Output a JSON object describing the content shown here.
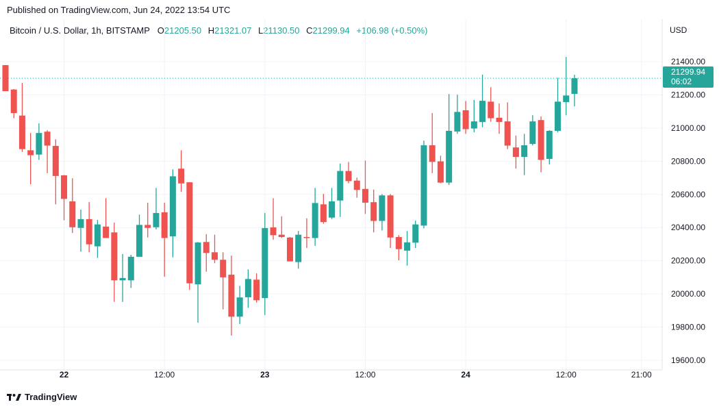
{
  "header": {
    "published": "Published on TradingView.com, Jun 24, 2022 13:54 UTC",
    "symbol": "Bitcoin / U.S. Dollar, 1h, BITSTAMP",
    "o_label": "O",
    "o_value": "21205.50",
    "h_label": "H",
    "h_value": "21321.07",
    "l_label": "L",
    "l_value": "21130.50",
    "c_label": "C",
    "c_value": "21299.94",
    "change": "+106.98 (+0.50%)"
  },
  "currency": "USD",
  "price_tag": {
    "price": "21299.94",
    "countdown": "06:02"
  },
  "footer": {
    "brand": "TradingView"
  },
  "colors": {
    "up": "#26a69a",
    "down": "#ef5350",
    "grid": "#f0f3fa",
    "last_price_line": "#26a69a"
  },
  "chart_data": {
    "type": "candlestick",
    "interval": "1h",
    "ylim": [
      19600,
      21400
    ],
    "grid": true,
    "y_ticks": [
      "19600.00",
      "19800.00",
      "20000.00",
      "20200.00",
      "20400.00",
      "20600.00",
      "20800.00",
      "21000.00",
      "21200.00",
      "21400.00"
    ],
    "x_ticks": [
      {
        "label": "22",
        "t": "22 00:00",
        "bold": true
      },
      {
        "label": "12:00",
        "t": "22 12:00",
        "bold": false
      },
      {
        "label": "23",
        "t": "23 00:00",
        "bold": true
      },
      {
        "label": "12:00",
        "t": "23 12:00",
        "bold": false
      },
      {
        "label": "24",
        "t": "24 00:00",
        "bold": true
      },
      {
        "label": "12:00",
        "t": "24 12:00",
        "bold": false
      },
      {
        "label": "21:00",
        "t": "24 21:00",
        "bold": false
      }
    ],
    "last_price": 21299.94,
    "candles_start": "21 17:00",
    "ohlc": [
      [
        21379,
        21380,
        21222,
        21222
      ],
      [
        21232,
        21235,
        21059,
        21090
      ],
      [
        21075,
        21272,
        20856,
        20873
      ],
      [
        20866,
        20970,
        20661,
        20836
      ],
      [
        20840,
        21028,
        20808,
        20970
      ],
      [
        20978,
        20987,
        20728,
        20894
      ],
      [
        20892,
        20932,
        20540,
        20711
      ],
      [
        20715,
        20717,
        20444,
        20573
      ],
      [
        20558,
        20697,
        20367,
        20402
      ],
      [
        20398,
        20508,
        20255,
        20451
      ],
      [
        20451,
        20554,
        20251,
        20299
      ],
      [
        20287,
        20446,
        20217,
        20419
      ],
      [
        20406,
        20577,
        20337,
        20337
      ],
      [
        20371,
        20430,
        19952,
        20082
      ],
      [
        20082,
        20241,
        19952,
        20096
      ],
      [
        20082,
        20236,
        20036,
        20224
      ],
      [
        20224,
        20478,
        20224,
        20416
      ],
      [
        20416,
        20550,
        20340,
        20398
      ],
      [
        20402,
        20639,
        20389,
        20488
      ],
      [
        20492,
        20550,
        20104,
        20337
      ],
      [
        20347,
        20751,
        20221,
        20709
      ],
      [
        20755,
        20866,
        20616,
        20666
      ],
      [
        20673,
        20673,
        20024,
        20064
      ],
      [
        20058,
        20313,
        19827,
        20310
      ],
      [
        20313,
        20361,
        20134,
        20247
      ],
      [
        20251,
        20357,
        20185,
        20206
      ],
      [
        20206,
        20251,
        19907,
        20100
      ],
      [
        20116,
        20231,
        19749,
        19863
      ],
      [
        19863,
        20049,
        19819,
        19979
      ],
      [
        19980,
        20148,
        19917,
        20090
      ],
      [
        20086,
        20124,
        19948,
        19962
      ],
      [
        19975,
        20488,
        19873,
        20397
      ],
      [
        20401,
        20577,
        20327,
        20354
      ],
      [
        20357,
        20468,
        20337,
        20343
      ],
      [
        20340,
        20343,
        20196,
        20196
      ],
      [
        20192,
        20380,
        20152,
        20357
      ],
      [
        20343,
        20456,
        20277,
        20337
      ],
      [
        20337,
        20639,
        20290,
        20548
      ],
      [
        20540,
        20603,
        20423,
        20433
      ],
      [
        20460,
        20639,
        20451,
        20558
      ],
      [
        20563,
        20786,
        20464,
        20741
      ],
      [
        20741,
        20795,
        20667,
        20680
      ],
      [
        20683,
        20701,
        20580,
        20627
      ],
      [
        20633,
        20804,
        20482,
        20550
      ],
      [
        20553,
        20629,
        20371,
        20440
      ],
      [
        20440,
        20602,
        20382,
        20594
      ],
      [
        20594,
        20602,
        20277,
        20340
      ],
      [
        20343,
        20354,
        20203,
        20270
      ],
      [
        20261,
        20379,
        20171,
        20311
      ],
      [
        20309,
        20442,
        20277,
        20419
      ],
      [
        20412,
        20924,
        20396,
        20896
      ],
      [
        20896,
        21090,
        20728,
        20796
      ],
      [
        20799,
        20833,
        20667,
        20671
      ],
      [
        20671,
        21205,
        20657,
        20983
      ],
      [
        20979,
        21201,
        20965,
        21097
      ],
      [
        21107,
        21163,
        20965,
        20993
      ],
      [
        20997,
        21169,
        20974,
        21040
      ],
      [
        21036,
        21322,
        21005,
        21164
      ],
      [
        21159,
        21246,
        21038,
        21059
      ],
      [
        21062,
        21148,
        20965,
        21036
      ],
      [
        21040,
        21155,
        20873,
        20894
      ],
      [
        20883,
        20955,
        20756,
        20826
      ],
      [
        20826,
        20965,
        20716,
        20896
      ],
      [
        20904,
        21077,
        20895,
        21040
      ],
      [
        21048,
        21070,
        20733,
        20808
      ],
      [
        20814,
        20987,
        20781,
        20983
      ],
      [
        20983,
        21304,
        20974,
        21159
      ],
      [
        21156,
        21428,
        21077,
        21196
      ],
      [
        21205.5,
        21321.07,
        21130.5,
        21299.94
      ]
    ]
  }
}
